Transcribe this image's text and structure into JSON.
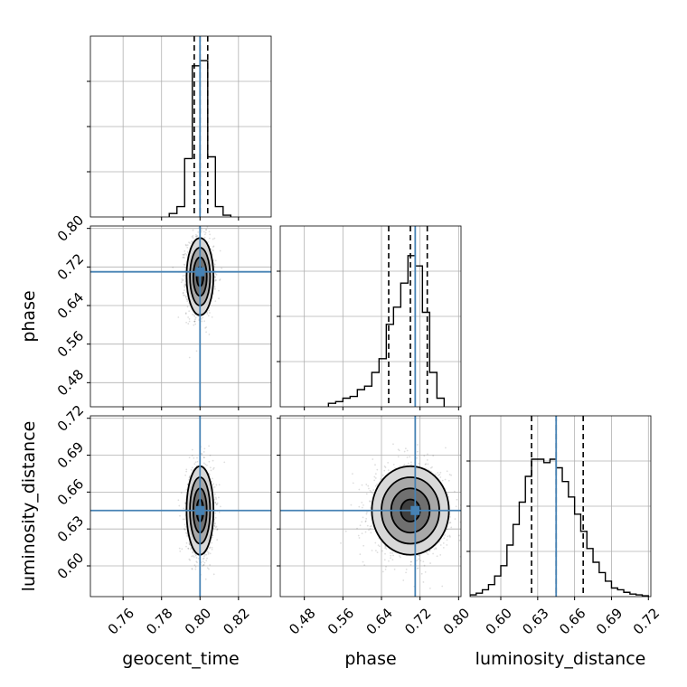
{
  "chart_data": {
    "type": "corner",
    "parameters": [
      "geocent_time",
      "phase",
      "luminosity_distance"
    ],
    "truths": {
      "geocent_time": 0.8,
      "phase": 0.71,
      "luminosity_distance": 0.645
    },
    "quantiles": {
      "geocent_time": [
        0.797,
        0.8,
        0.804
      ],
      "phase": [
        0.655,
        0.7,
        0.735
      ],
      "luminosity_distance": [
        0.625,
        0.645,
        0.667
      ]
    },
    "ranges": {
      "geocent_time": [
        0.743,
        0.837
      ],
      "phase": [
        0.43,
        0.805
      ],
      "luminosity_distance": [
        0.575,
        0.722
      ]
    },
    "ticks": {
      "geocent_time": [
        "0.76",
        "0.78",
        "0.80",
        "0.82"
      ],
      "phase": [
        "0.48",
        "0.56",
        "0.64",
        "0.72",
        "0.80"
      ],
      "luminosity_distance": [
        "0.60",
        "0.63",
        "0.66",
        "0.69",
        "0.72"
      ]
    },
    "histograms": {
      "geocent_time": {
        "bins": [
          0.784,
          0.788,
          0.792,
          0.796,
          0.8,
          0.804,
          0.808,
          0.812,
          0.816
        ],
        "counts": [
          0.02,
          0.06,
          0.34,
          0.88,
          0.91,
          0.35,
          0.06,
          0.01
        ]
      },
      "phase": {
        "bins": [
          0.53,
          0.545,
          0.56,
          0.575,
          0.59,
          0.605,
          0.62,
          0.635,
          0.65,
          0.665,
          0.68,
          0.695,
          0.71,
          0.725,
          0.74,
          0.755,
          0.77
        ],
        "counts": [
          0.02,
          0.03,
          0.05,
          0.06,
          0.1,
          0.12,
          0.2,
          0.28,
          0.48,
          0.58,
          0.72,
          0.88,
          0.82,
          0.55,
          0.2,
          0.05
        ]
      },
      "luminosity_distance": {
        "bins": [
          0.575,
          0.58,
          0.585,
          0.59,
          0.595,
          0.6,
          0.605,
          0.61,
          0.615,
          0.62,
          0.625,
          0.63,
          0.635,
          0.64,
          0.645,
          0.65,
          0.655,
          0.66,
          0.665,
          0.67,
          0.675,
          0.68,
          0.685,
          0.69,
          0.695,
          0.7,
          0.705,
          0.71,
          0.715,
          0.72
        ],
        "counts": [
          0.01,
          0.02,
          0.04,
          0.07,
          0.12,
          0.18,
          0.3,
          0.42,
          0.55,
          0.7,
          0.8,
          0.8,
          0.78,
          0.8,
          0.75,
          0.67,
          0.58,
          0.48,
          0.38,
          0.28,
          0.2,
          0.14,
          0.09,
          0.05,
          0.04,
          0.025,
          0.015,
          0.01,
          0.005
        ]
      }
    },
    "grid": true
  }
}
